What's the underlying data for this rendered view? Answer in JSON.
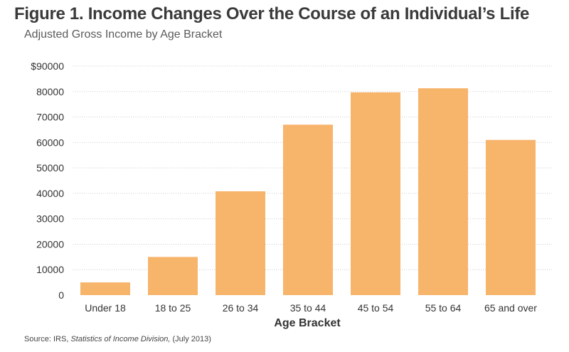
{
  "chart_data": {
    "type": "bar",
    "title": "Figure 1. Income Changes Over the Course of an Individual’s Life",
    "subtitle": "Adjusted Gross Income by Age Bracket",
    "xlabel": "Age Bracket",
    "ylabel": "",
    "categories": [
      "Under 18",
      "18 to 25",
      "26 to 34",
      "35 to 44",
      "45 to 54",
      "55 to 64",
      "65 and over"
    ],
    "values": [
      5000,
      15000,
      40800,
      67000,
      79700,
      81300,
      61000
    ],
    "ylim": [
      0,
      90000
    ],
    "yticks": [
      0,
      10000,
      20000,
      30000,
      40000,
      50000,
      60000,
      70000,
      80000,
      90000
    ],
    "ytick_labels": [
      "0",
      "10000",
      "20000",
      "30000",
      "40000",
      "50000",
      "60000",
      "70000",
      "80000",
      "$90000"
    ],
    "grid": true,
    "bar_color": "#f7b46b",
    "grid_color": "#cccccc"
  },
  "source": {
    "label": "Source:",
    "text_plain": "IRS,",
    "text_italic": "Statistics of Income Division,",
    "text_tail": "(July 2013)"
  }
}
